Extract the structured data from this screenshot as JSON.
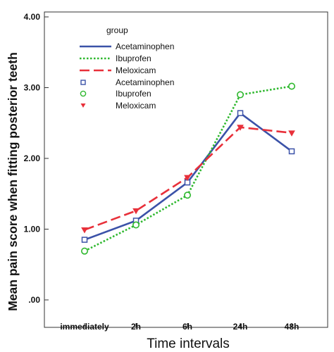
{
  "chart_data": {
    "type": "line",
    "xlabel": "Time intervals",
    "ylabel": "Mean pain score when fitting posterior teeth",
    "categories": [
      "immediately",
      "2h",
      "6h",
      "24h",
      "48h"
    ],
    "ylim": [
      0,
      4
    ],
    "yticks": [
      0,
      1,
      2,
      3,
      4
    ],
    "ytick_labels": [
      ".00",
      "1.00",
      "2.00",
      "3.00",
      "4.00"
    ],
    "grid": false,
    "legend_title": "group",
    "legend_position": "top-left",
    "legend_entries": [
      "Acetaminophen",
      "Ibuprofen",
      "Meloxicam",
      "Acetaminophen",
      "Ibuprofen",
      "Meloxicam"
    ],
    "series": [
      {
        "name": "Acetaminophen",
        "values": [
          0.85,
          1.12,
          1.66,
          2.64,
          2.1
        ],
        "color": "#3b52a8",
        "line": "solid",
        "marker": "square"
      },
      {
        "name": "Ibuprofen",
        "values": [
          0.69,
          1.06,
          1.48,
          2.9,
          3.02
        ],
        "color": "#2eb82e",
        "line": "dotted",
        "marker": "circle"
      },
      {
        "name": "Meloxicam",
        "values": [
          0.99,
          1.26,
          1.73,
          2.44,
          2.36
        ],
        "color": "#e8303a",
        "line": "dashed",
        "marker": "triangle-down"
      }
    ]
  }
}
